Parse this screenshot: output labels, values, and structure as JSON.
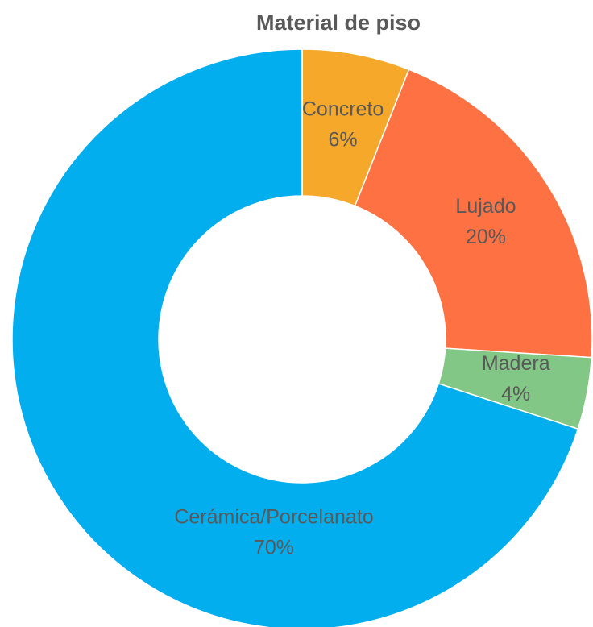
{
  "chart_data": {
    "type": "donut",
    "title": "Material de piso",
    "categories": [
      "Concreto",
      "Lujado",
      "Madera",
      "Cerámica/Porcelanato"
    ],
    "values": [
      6,
      20,
      4,
      70
    ],
    "value_labels": [
      "6%",
      "20%",
      "4%",
      "70%"
    ],
    "colors": [
      "#f6a82a",
      "#fd7143",
      "#82c785",
      "#03aeef"
    ]
  }
}
